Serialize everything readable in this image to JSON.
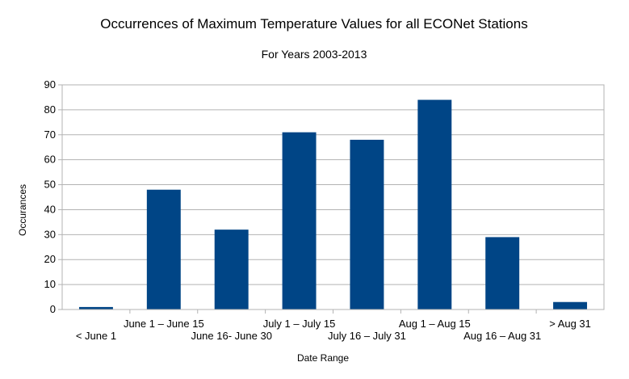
{
  "chart_data": {
    "type": "bar",
    "title": "Occurrences of Maximum Temperature Values for all ECONet Stations",
    "subtitle": "For Years 2003-2013",
    "xlabel": "Date Range",
    "ylabel": "Occurances",
    "categories": [
      "< June 1",
      "June 1 – June 15",
      "June 16- June 30",
      "July 1 – July 15",
      "July 16 – July 31",
      "Aug 1 – Aug 15",
      "Aug 16 – Aug 31",
      "> Aug 31"
    ],
    "values": [
      1,
      48,
      32,
      71,
      68,
      84,
      29,
      3
    ],
    "ylim": [
      0,
      90
    ],
    "yticks": [
      "0",
      "10",
      "20",
      "30",
      "40",
      "50",
      "60",
      "70",
      "80",
      "90"
    ],
    "grid": true,
    "legend": "none",
    "bar_color": "#004586",
    "grid_color": "#b3b3b3"
  }
}
